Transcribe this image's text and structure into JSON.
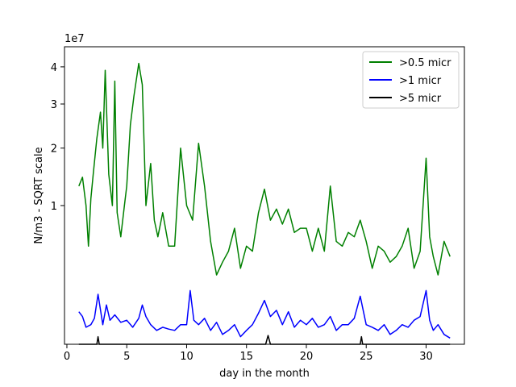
{
  "chart_data": {
    "type": "line",
    "xlabel": "day in the month",
    "ylabel": "N/m3 - SQRT scale",
    "y_scale": "sqrt",
    "y_offset_label": "1e7",
    "xlim": [
      -0.2,
      33.2
    ],
    "ylim": [
      0,
      4.6
    ],
    "x_ticks": [
      0,
      5,
      10,
      15,
      20,
      25,
      30
    ],
    "x_tick_labels": [
      "0",
      "5",
      "10",
      "15",
      "20",
      "25",
      "30"
    ],
    "y_ticks": [
      1,
      2,
      3,
      4
    ],
    "y_tick_labels": [
      "1",
      "2",
      "3",
      "4"
    ],
    "grid": false,
    "legend_position": "top-right",
    "series": [
      {
        "name": ">0.5 micr",
        "color": "#008000",
        "x": [
          1.0,
          1.3,
          1.6,
          1.8,
          2.0,
          2.2,
          2.5,
          2.8,
          3.0,
          3.2,
          3.5,
          3.8,
          4.0,
          4.2,
          4.5,
          4.8,
          5.0,
          5.3,
          5.6,
          6.0,
          6.3,
          6.6,
          7.0,
          7.3,
          7.6,
          8.0,
          8.5,
          9.0,
          9.5,
          10.0,
          10.5,
          11.0,
          11.5,
          12.0,
          12.5,
          13.0,
          13.5,
          14.0,
          14.5,
          15.0,
          15.5,
          16.0,
          16.5,
          17.0,
          17.5,
          18.0,
          18.5,
          19.0,
          19.5,
          20.0,
          20.5,
          21.0,
          21.5,
          22.0,
          22.5,
          23.0,
          23.5,
          24.0,
          24.5,
          25.0,
          25.5,
          26.0,
          26.5,
          27.0,
          27.5,
          28.0,
          28.5,
          29.0,
          29.5,
          30.0,
          30.3,
          30.6,
          31.0,
          31.5,
          32.0
        ],
        "values": [
          1.3,
          1.45,
          1.0,
          0.5,
          1.1,
          1.5,
          2.2,
          2.8,
          2.0,
          3.9,
          1.5,
          1.0,
          3.6,
          0.9,
          0.6,
          1.0,
          1.3,
          2.5,
          3.2,
          4.1,
          3.5,
          1.0,
          1.7,
          0.8,
          0.6,
          0.9,
          0.5,
          0.5,
          2.0,
          1.0,
          0.8,
          2.1,
          1.3,
          0.55,
          0.25,
          0.35,
          0.45,
          0.7,
          0.3,
          0.5,
          0.45,
          0.9,
          1.25,
          0.8,
          0.95,
          0.75,
          0.95,
          0.65,
          0.7,
          0.7,
          0.45,
          0.7,
          0.45,
          1.3,
          0.55,
          0.5,
          0.65,
          0.6,
          0.8,
          0.55,
          0.3,
          0.5,
          0.45,
          0.35,
          0.4,
          0.5,
          0.7,
          0.3,
          0.45,
          1.8,
          0.6,
          0.4,
          0.25,
          0.55,
          0.4
        ]
      },
      {
        "name": ">1 micr",
        "color": "#0000ff",
        "x": [
          1.0,
          1.3,
          1.6,
          2.0,
          2.3,
          2.6,
          3.0,
          3.3,
          3.6,
          4.0,
          4.5,
          5.0,
          5.5,
          6.0,
          6.3,
          6.6,
          7.0,
          7.5,
          8.0,
          8.5,
          9.0,
          9.5,
          10.0,
          10.3,
          10.6,
          11.0,
          11.5,
          12.0,
          12.5,
          13.0,
          13.5,
          14.0,
          14.5,
          15.0,
          15.5,
          16.0,
          16.5,
          17.0,
          17.5,
          18.0,
          18.5,
          19.0,
          19.5,
          20.0,
          20.5,
          21.0,
          21.5,
          22.0,
          22.5,
          23.0,
          23.5,
          24.0,
          24.5,
          25.0,
          25.5,
          26.0,
          26.5,
          27.0,
          27.5,
          28.0,
          28.5,
          29.0,
          29.5,
          30.0,
          30.3,
          30.6,
          31.0,
          31.5,
          32.0
        ],
        "values": [
          0.055,
          0.04,
          0.015,
          0.02,
          0.035,
          0.13,
          0.02,
          0.08,
          0.03,
          0.045,
          0.025,
          0.03,
          0.015,
          0.035,
          0.08,
          0.04,
          0.02,
          0.01,
          0.015,
          0.012,
          0.01,
          0.02,
          0.02,
          0.15,
          0.03,
          0.02,
          0.035,
          0.01,
          0.025,
          0.005,
          0.01,
          0.02,
          0.003,
          0.01,
          0.02,
          0.05,
          0.1,
          0.04,
          0.06,
          0.02,
          0.055,
          0.015,
          0.03,
          0.02,
          0.035,
          0.015,
          0.02,
          0.04,
          0.01,
          0.02,
          0.02,
          0.035,
          0.12,
          0.02,
          0.015,
          0.01,
          0.02,
          0.005,
          0.01,
          0.02,
          0.015,
          0.03,
          0.04,
          0.15,
          0.03,
          0.01,
          0.02,
          0.005,
          0.002
        ]
      },
      {
        "name": ">5 micr",
        "color": "#000000",
        "x": [
          1.0,
          2.5,
          2.6,
          2.7,
          5.0,
          10.0,
          10.5,
          15.0,
          16.6,
          16.8,
          17.0,
          20.0,
          24.5,
          24.6,
          24.7,
          28.0,
          32.0
        ],
        "values": [
          0.0,
          0.0,
          0.003,
          0.0,
          0.0,
          0.0,
          0.0,
          0.0,
          0.0,
          0.004,
          0.0,
          0.0,
          0.0,
          0.003,
          0.0,
          0.0,
          0.0
        ]
      }
    ]
  }
}
